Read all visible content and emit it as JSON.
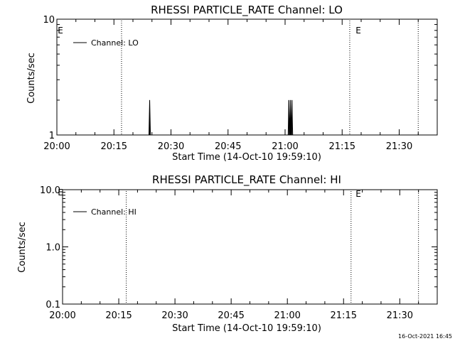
{
  "footer": {
    "timestamp": "16-Oct-2021 16:45"
  },
  "chart_data": [
    {
      "type": "line",
      "title": "RHESSI PARTICLE_RATE Channel: LO",
      "xlabel": "Start Time (14-Oct-10 19:59:10)",
      "ylabel": "Counts/sec",
      "y_scale": "log",
      "ylim": [
        1,
        10
      ],
      "y_ticks": [
        1,
        10
      ],
      "y_tick_labels": [
        "1",
        "10"
      ],
      "x_time_range": [
        "20:00",
        "21:40"
      ],
      "x_ticks": [
        "20:00",
        "20:15",
        "20:30",
        "20:45",
        "21:00",
        "21:15",
        "21:30"
      ],
      "legend": {
        "placement": "top-left",
        "entries": [
          "Channel: LO"
        ]
      },
      "event_lines": [
        {
          "time": "20:17",
          "label": ""
        },
        {
          "time": "21:17",
          "label": "E"
        },
        {
          "time": "21:35",
          "label": ""
        }
      ],
      "start_marker": "E",
      "series": [
        {
          "name": "Channel: LO",
          "points": [
            {
              "x": "20:24.2",
              "y": 1
            },
            {
              "x": "20:24.4",
              "y": 2
            },
            {
              "x": "20:24.6",
              "y": 1
            },
            {
              "x": "21:00.8",
              "y": 1
            },
            {
              "x": "21:01.0",
              "y": 2
            },
            {
              "x": "21:01.2",
              "y": 1
            },
            {
              "x": "21:01.4",
              "y": 2
            },
            {
              "x": "21:01.6",
              "y": 1
            },
            {
              "x": "21:01.8",
              "y": 2
            },
            {
              "x": "21:02.0",
              "y": 1
            }
          ]
        }
      ]
    },
    {
      "type": "line",
      "title": "RHESSI PARTICLE_RATE Channel: HI",
      "xlabel": "Start Time (14-Oct-10 19:59:10)",
      "ylabel": "Counts/sec",
      "y_scale": "log",
      "ylim": [
        0.1,
        10
      ],
      "y_ticks": [
        0.1,
        1,
        10
      ],
      "y_tick_labels": [
        "0.1",
        "1.0",
        "10.0"
      ],
      "x_time_range": [
        "20:00",
        "21:40"
      ],
      "x_ticks": [
        "20:00",
        "20:15",
        "20:30",
        "20:45",
        "21:00",
        "21:15",
        "21:30"
      ],
      "legend": {
        "placement": "top-left",
        "entries": [
          "Channel: HI"
        ]
      },
      "event_lines": [
        {
          "time": "20:17",
          "label": ""
        },
        {
          "time": "21:17",
          "label": "E"
        },
        {
          "time": "21:35",
          "label": ""
        }
      ],
      "start_marker": "E",
      "series": [
        {
          "name": "Channel: HI",
          "points": []
        }
      ]
    }
  ]
}
